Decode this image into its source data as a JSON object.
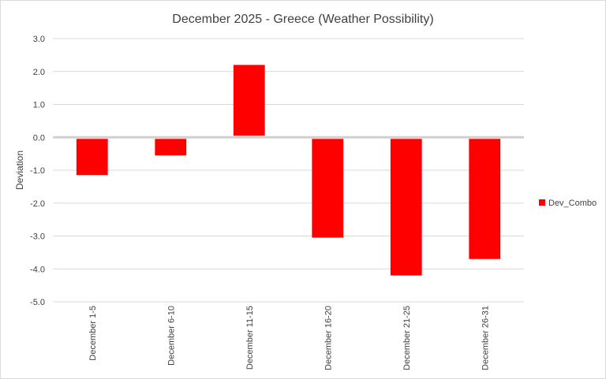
{
  "chart_data": {
    "type": "bar",
    "title": "December 2025 - Greece (Weather Possibility)",
    "xlabel": "",
    "ylabel": "Deviation",
    "categories": [
      "December 1-5",
      "December 6-10",
      "December 11-15",
      "December 16-20",
      "December 21-25",
      "December 26-31"
    ],
    "series": [
      {
        "name": "Dev_Combo",
        "color": "#ff0000",
        "values": [
          -1.15,
          -0.55,
          2.2,
          -3.05,
          -4.2,
          -3.7
        ]
      }
    ],
    "ylim": [
      -5.0,
      3.0
    ],
    "yticks": [
      3.0,
      2.0,
      1.0,
      0.0,
      -1.0,
      -2.0,
      -3.0,
      -4.0,
      -5.0
    ],
    "ytick_labels": [
      "3.0",
      "2.0",
      "1.0",
      "0.0",
      "-1.0",
      "-2.0",
      "-3.0",
      "-4.0",
      "-5.0"
    ],
    "grid": true,
    "legend_position": "right",
    "colors": {
      "bar": "#ff0000",
      "grid": "#d9d9d9",
      "zero_line": "#d0d0d0",
      "text": "#404040",
      "title": "#404040"
    }
  }
}
